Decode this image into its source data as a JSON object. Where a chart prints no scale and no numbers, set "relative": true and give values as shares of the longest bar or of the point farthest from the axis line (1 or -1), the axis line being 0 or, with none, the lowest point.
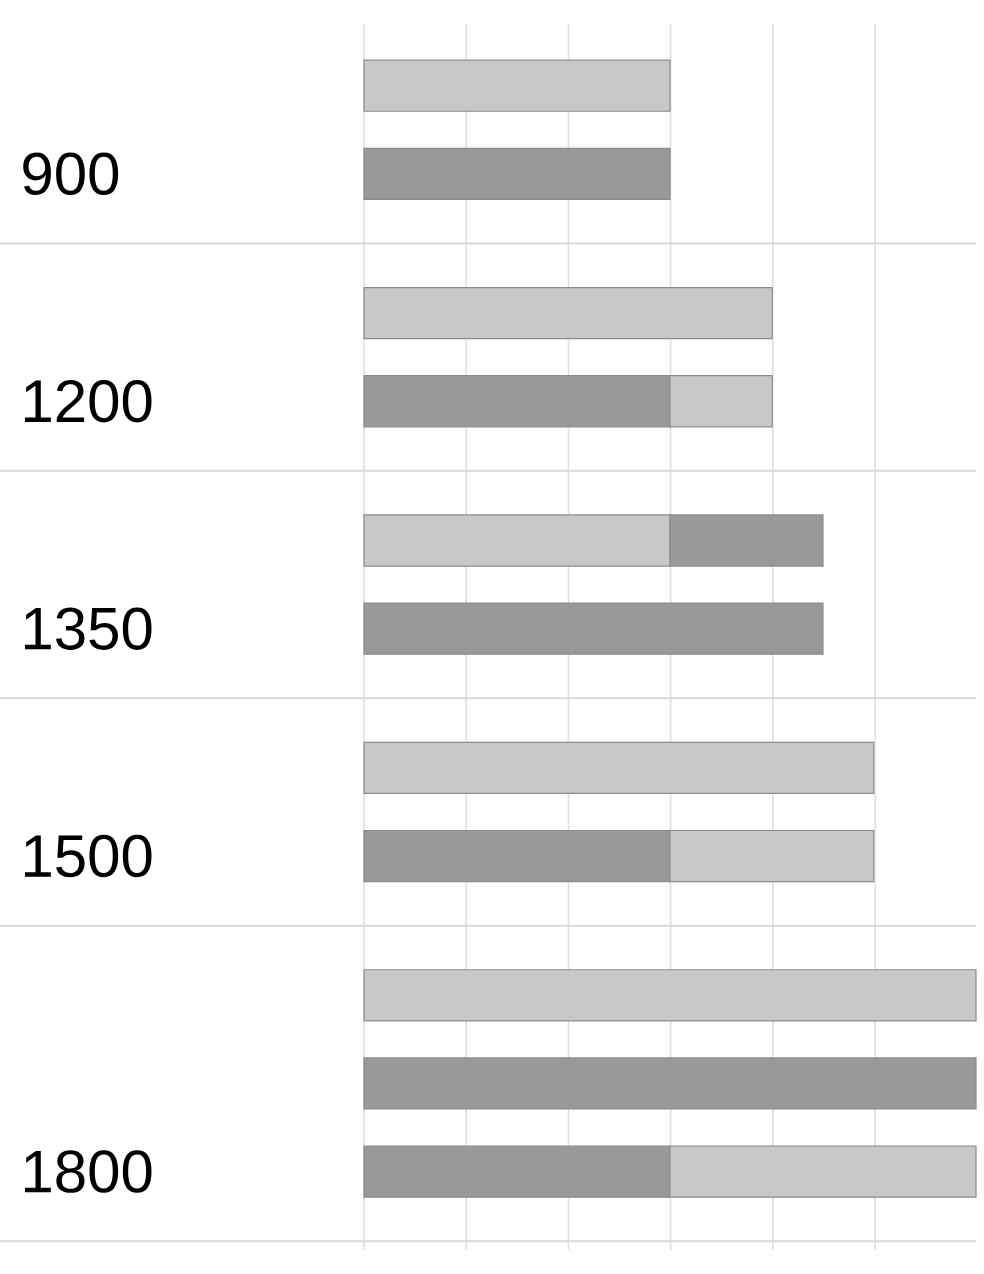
{
  "chart_data": {
    "type": "bar",
    "orientation": "horizontal",
    "stacked": true,
    "relative": true,
    "grid": "x",
    "categories": [
      null,
      "900",
      null,
      "1200",
      null,
      "1350",
      null,
      "1500",
      null,
      null,
      "1800"
    ],
    "series": [
      {
        "color": "#999999",
        "values": [
          null,
          0.5,
          null,
          0.5,
          null,
          0.75,
          null,
          0.5,
          null,
          1,
          0.5
        ]
      },
      {
        "color": "#c8c8c8",
        "values": [
          0.5,
          null,
          0.667,
          0.167,
          0.5,
          null,
          0.833,
          0.333,
          1,
          null,
          0.5
        ]
      },
      {
        "color": "#999999",
        "values": [
          null,
          null,
          null,
          null,
          0.25,
          null,
          null,
          null,
          null,
          null,
          null
        ]
      }
    ]
  }
}
